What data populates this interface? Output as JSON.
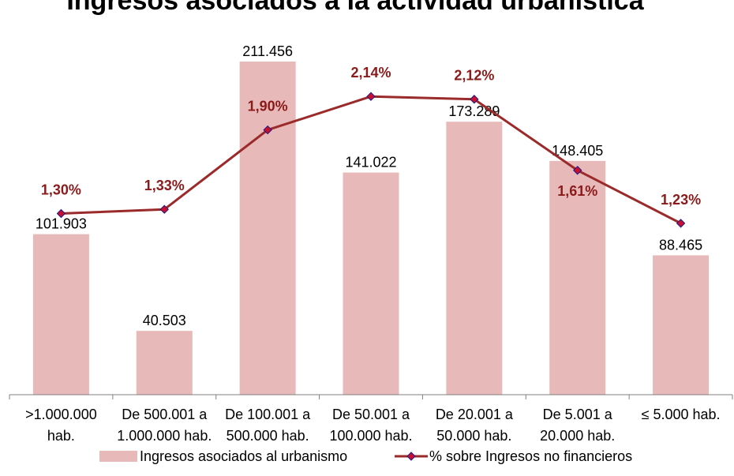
{
  "chart_data": {
    "type": "bar",
    "title": "Ingresos asociados a la actividad urbanística",
    "categories": [
      [
        ">1.000.000",
        "hab."
      ],
      [
        "De 500.001 a",
        "1.000.000 hab."
      ],
      [
        "De 100.001 a",
        "500.000 hab."
      ],
      [
        "De 50.001 a",
        "100.000 hab."
      ],
      [
        "De 20.001 a",
        "50.000 hab."
      ],
      [
        "De 5.001 a",
        "20.000 hab."
      ],
      [
        "≤ 5.000 hab."
      ]
    ],
    "series": [
      {
        "name": "Ingresos asociados al urbanismo",
        "type": "bar",
        "color": "#e8b9b9",
        "values": [
          101903,
          40503,
          211456,
          141022,
          173289,
          148405,
          88465
        ],
        "labels": [
          "101.903",
          "40.503",
          "211.456",
          "141.022",
          "173.289",
          "148.405",
          "88.465"
        ]
      },
      {
        "name": "% sobre Ingresos no financieros",
        "type": "line",
        "color": "#9b2a2a",
        "marker_color": "#c8102e",
        "marker_edge": "#1a1a8a",
        "values": [
          1.3,
          1.33,
          1.9,
          2.14,
          2.12,
          1.61,
          1.23
        ],
        "labels": [
          "1,30%",
          "1,33%",
          "1,90%",
          "2,14%",
          "2,12%",
          "1,61%",
          "1,23%"
        ]
      }
    ],
    "ylim": [
      0,
      230000
    ],
    "ylim_secondary": [
      0,
      2.6
    ],
    "grid": false,
    "legend_position": "bottom"
  }
}
